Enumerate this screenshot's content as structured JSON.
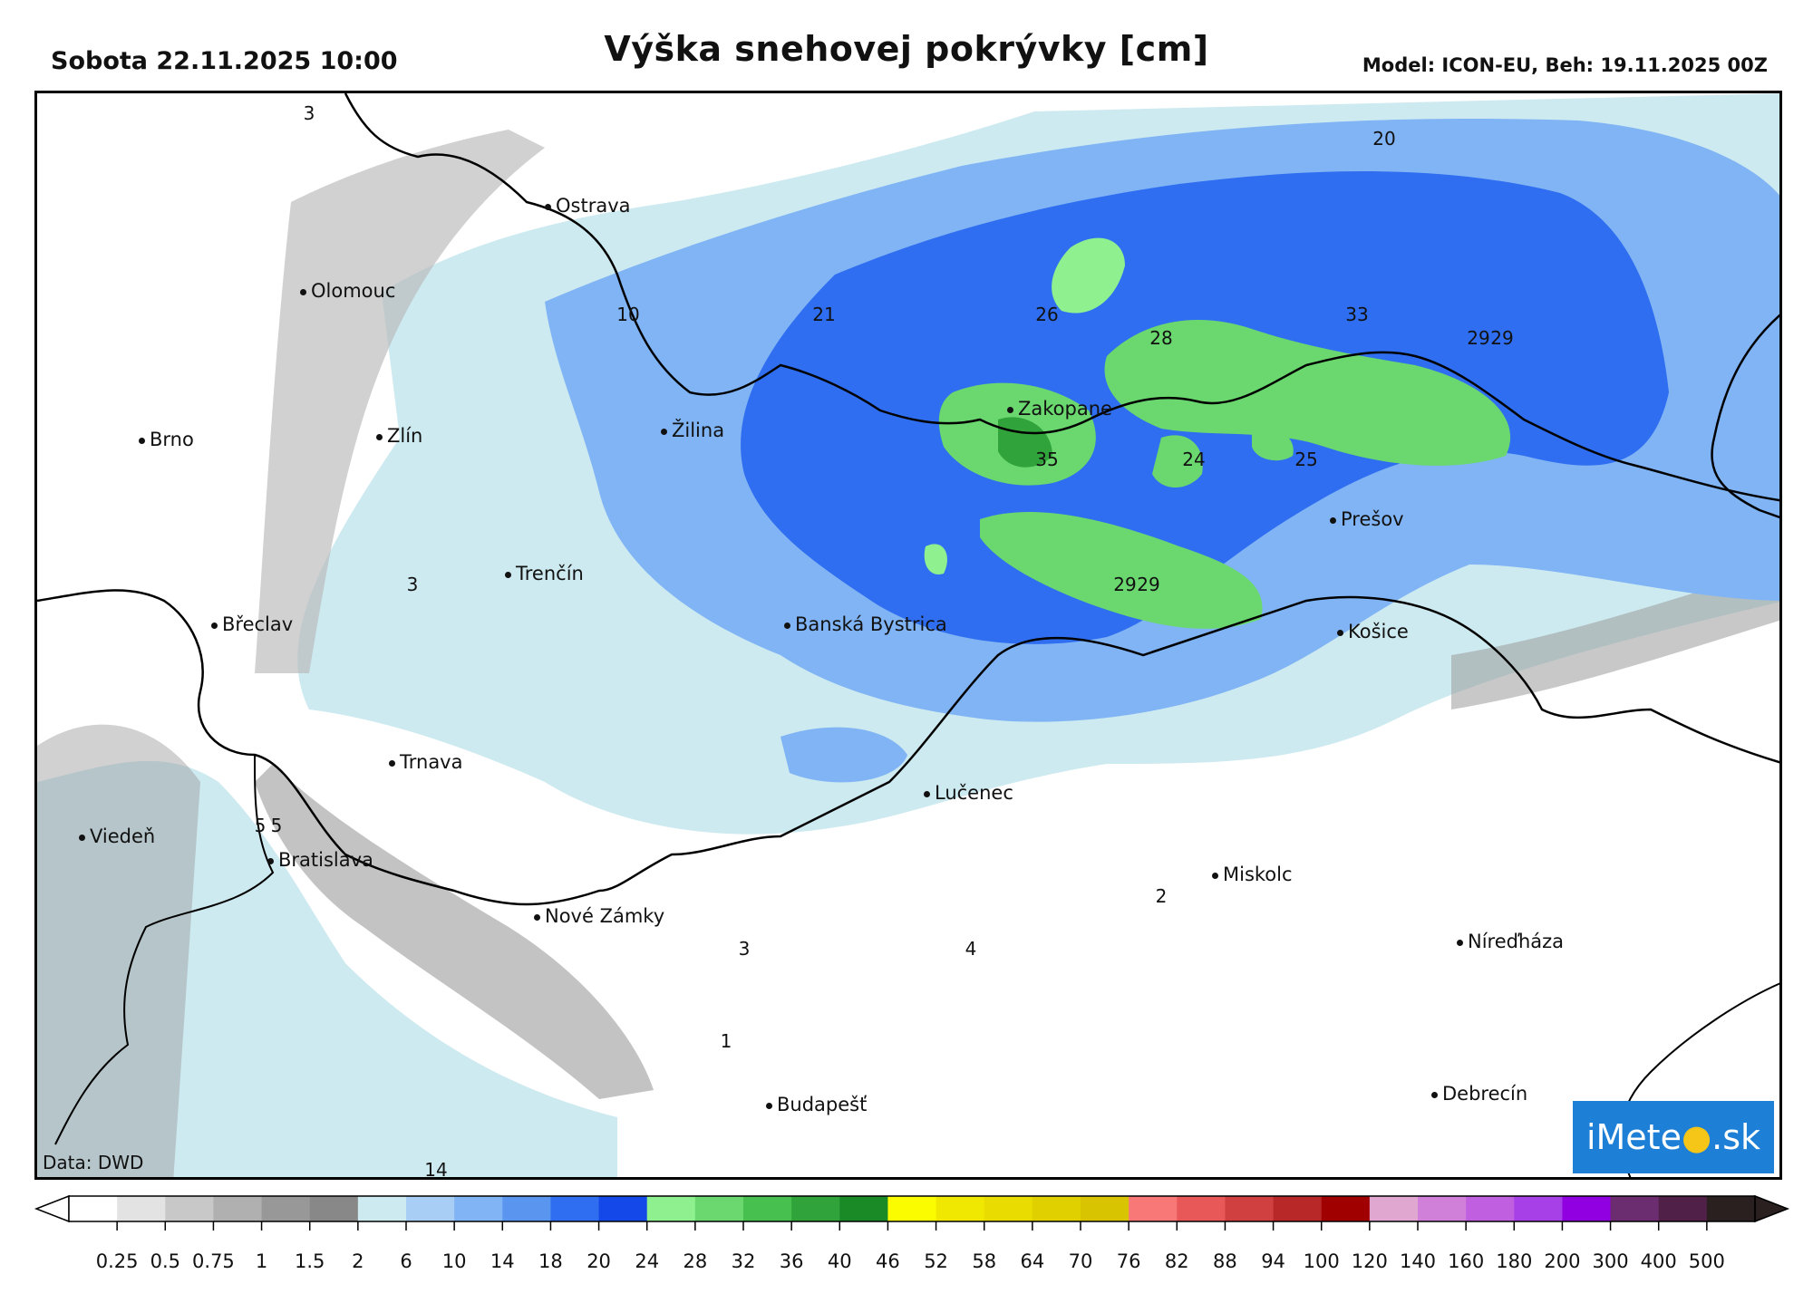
{
  "header": {
    "date_time": "Sobota 22.11.2025 10:00",
    "title": "Výška snehovej pokrývky [cm]",
    "model_run": "Model: ICON-EU, Beh: 19.11.2025 00Z"
  },
  "map": {
    "cities": [
      {
        "name": "Ostrava"
      },
      {
        "name": "Olomouc"
      },
      {
        "name": "Brno"
      },
      {
        "name": "Zlín"
      },
      {
        "name": "Žilina"
      },
      {
        "name": "Zakopane"
      },
      {
        "name": "Trenčín"
      },
      {
        "name": "Břeclav"
      },
      {
        "name": "Banská Bystrica"
      },
      {
        "name": "Prešov"
      },
      {
        "name": "Košice"
      },
      {
        "name": "Trnava"
      },
      {
        "name": "Lučenec"
      },
      {
        "name": "Viedeň"
      },
      {
        "name": "Bratislava"
      },
      {
        "name": "Miskolc"
      },
      {
        "name": "Nové Zámky"
      },
      {
        "name": "Níreďháza"
      },
      {
        "name": "Budapešť"
      },
      {
        "name": "Debrecín"
      }
    ],
    "values": [
      "3",
      "20",
      "10",
      "21",
      "26",
      "33",
      "28",
      "29",
      "29",
      "35",
      "24",
      "25",
      "3",
      "29",
      "29",
      "5",
      "5",
      "2",
      "3",
      "4",
      "1",
      "14"
    ],
    "credit": "Data: DWD",
    "logo": {
      "left": "iMete",
      "right": ".sk",
      "sun": "●"
    }
  },
  "legend": {
    "labels": [
      "0.25",
      "0.5",
      "0.75",
      "1",
      "1.5",
      "2",
      "6",
      "10",
      "14",
      "18",
      "20",
      "24",
      "28",
      "32",
      "36",
      "40",
      "46",
      "52",
      "58",
      "64",
      "70",
      "76",
      "82",
      "88",
      "94",
      "100",
      "120",
      "140",
      "160",
      "180",
      "200",
      "300",
      "400",
      "500"
    ],
    "colors": [
      "#ffffff",
      "#e3e3e3",
      "#c8c8c8",
      "#b0b0b0",
      "#989898",
      "#888888",
      "#cdeaf0",
      "#a8cef5",
      "#80b4f5",
      "#5a96f0",
      "#2f6ef0",
      "#1448e8",
      "#8ef08e",
      "#6ad86e",
      "#48c050",
      "#30a43a",
      "#1a8a26",
      "#fcfc00",
      "#f0e800",
      "#e8dc00",
      "#e0d000",
      "#d8c400",
      "#f87878",
      "#e85858",
      "#d04040",
      "#b82828",
      "#a00000",
      "#e0a8d0",
      "#d080d8",
      "#c060e0",
      "#a840e8",
      "#9000e0",
      "#6c2c70",
      "#502048",
      "#2a2020"
    ]
  }
}
